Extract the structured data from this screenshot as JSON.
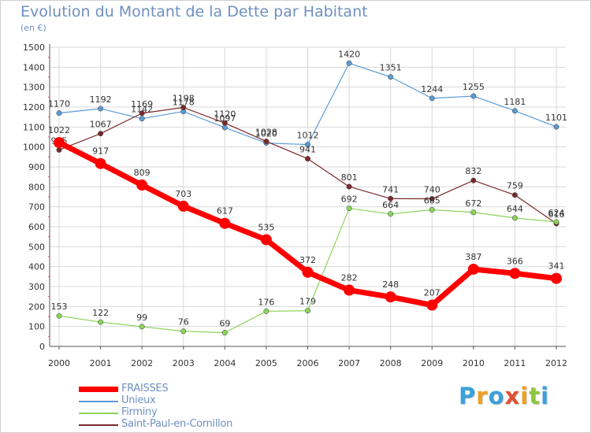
{
  "title": "Evolution du Montant de la Dette par Habitant",
  "unit": "(en €)",
  "brand": {
    "text": "Proxiti",
    "colors": [
      "#3aa0d8",
      "#f0a020",
      "#3aa0d8",
      "#e05030",
      "#f0a020",
      "#8cc63f",
      "#3aa0d8"
    ]
  },
  "chart_data": {
    "type": "line",
    "title": "Evolution du Montant de la Dette par Habitant",
    "subtitle": "(en €)",
    "xlabel": "",
    "ylabel": "",
    "ylim": [
      0,
      1500
    ],
    "yticks": [
      0,
      100,
      200,
      300,
      400,
      500,
      600,
      700,
      800,
      900,
      1000,
      1100,
      1200,
      1300,
      1400,
      1500
    ],
    "grid": true,
    "legend_position": "bottom-left",
    "x": [
      "2000",
      "2001",
      "2002",
      "2003",
      "2004",
      "2005",
      "2006",
      "2007",
      "2008",
      "2009",
      "2010",
      "2011",
      "2012"
    ],
    "series": [
      {
        "name": "Unieux",
        "color": "#5b9bd5",
        "values": [
          1170,
          1192,
          1142,
          1178,
          1097,
          1020,
          1012,
          1420,
          1351,
          1244,
          1255,
          1181,
          1101
        ],
        "labels": [
          "1170",
          "1192",
          "1142",
          "1178",
          "1097",
          "1020",
          "1012",
          "1420",
          "1351",
          "1244",
          "1255",
          "1181",
          "1101"
        ]
      },
      {
        "name": "Saint-Paul-en-Cornillon",
        "color": "#7a2a2a",
        "values": [
          985,
          1067,
          1169,
          1198,
          1120,
          1028,
          941,
          801,
          741,
          740,
          832,
          759,
          616
        ],
        "labels": [
          "985",
          "1067",
          "1169",
          "1198",
          "1120",
          "1028",
          "941",
          "801",
          "741",
          "740",
          "832",
          "759",
          "616"
        ]
      },
      {
        "name": "Firminy",
        "color": "#8cd45a",
        "values": [
          153,
          122,
          99,
          76,
          69,
          176,
          179,
          692,
          664,
          685,
          672,
          644,
          624
        ],
        "labels": [
          "153",
          "122",
          "99",
          "76",
          "69",
          "176",
          "179",
          "692",
          "664",
          "685",
          "672",
          "644",
          "624"
        ]
      },
      {
        "name": "FRAISSES",
        "color": "#ff0000",
        "values": [
          1022,
          917,
          809,
          703,
          617,
          535,
          372,
          282,
          248,
          207,
          387,
          366,
          341
        ],
        "labels": [
          "1022",
          "917",
          "809",
          "703",
          "617",
          "535",
          "372",
          "282",
          "248",
          "207",
          "387",
          "366",
          "341"
        ]
      }
    ],
    "legend": [
      "FRAISSES",
      "Unieux",
      "Firminy",
      "Saint-Paul-en-Cornillon"
    ]
  }
}
